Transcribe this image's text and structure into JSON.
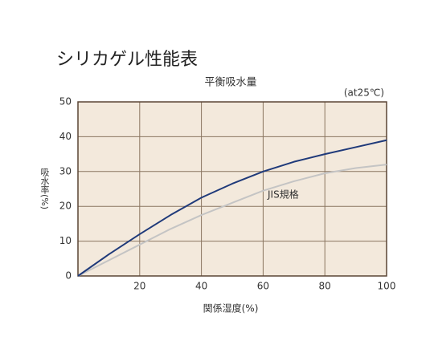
{
  "chart_data": {
    "type": "line",
    "title": "シリカゲル性能表",
    "subtitle": "平衡吸水量",
    "annotation": "(at25℃)",
    "x_label": "関係湿度(%)",
    "y_label": "吸水率(%)",
    "x": [
      0,
      10,
      20,
      30,
      40,
      50,
      60,
      70,
      80,
      90,
      100
    ],
    "series": [
      {
        "color": "#1f3a7a",
        "values": [
          0,
          6.2,
          12,
          17.5,
          22.5,
          26.5,
          30,
          32.8,
          35,
          37,
          39
        ]
      },
      {
        "name": "JIS規格",
        "color": "#c4c4c4",
        "values": [
          0,
          4.5,
          9,
          13.5,
          17.5,
          21,
          24.5,
          27.2,
          29.5,
          31,
          32
        ]
      }
    ],
    "xlim": [
      0,
      100
    ],
    "xticks": [
      20,
      40,
      60,
      80,
      100
    ],
    "ylim": [
      0,
      50
    ],
    "yticks": [
      0,
      10,
      20,
      30,
      40,
      50
    ],
    "grid": true,
    "background": "#f3e9dc"
  }
}
